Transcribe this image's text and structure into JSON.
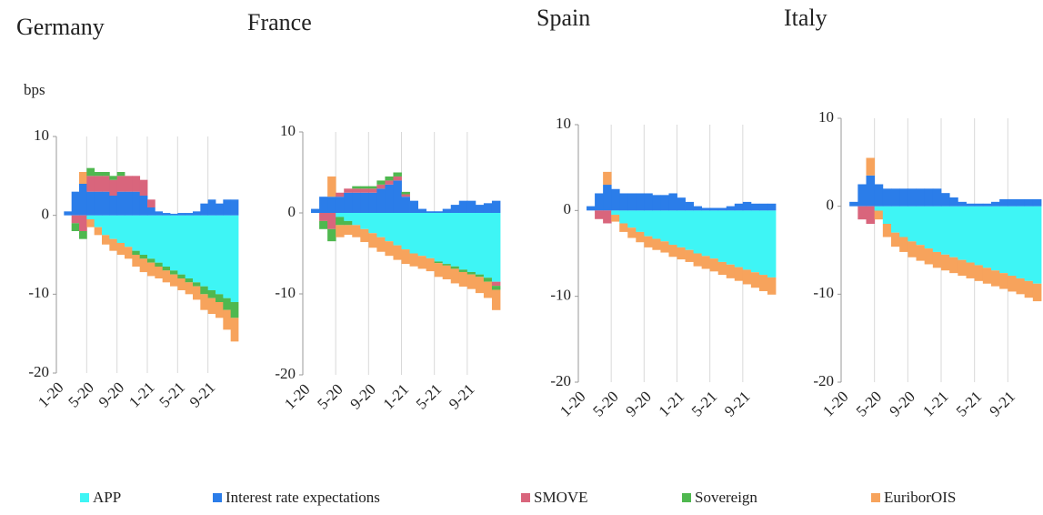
{
  "ylabel": "bps",
  "legend": [
    {
      "name": "APP",
      "color": "#3ef5f5"
    },
    {
      "name": "Interest rate expectations",
      "color": "#2b7de9"
    },
    {
      "name": "SMOVE",
      "color": "#d9657c"
    },
    {
      "name": "Sovereign",
      "color": "#4fb84f"
    },
    {
      "name": "EuriborOIS",
      "color": "#f7a35c"
    }
  ],
  "chart_data": [
    {
      "type": "bar",
      "title": "Germany",
      "ylim": [
        -20,
        10
      ],
      "yticks": [
        10,
        0,
        -10,
        -20
      ],
      "grid": true,
      "categories": [
        "1-20",
        null,
        null,
        null,
        "5-20",
        null,
        null,
        null,
        "9-20",
        null,
        null,
        null,
        "1-21",
        null,
        null,
        null,
        "5-21",
        null,
        null,
        null,
        "9-21",
        null,
        null,
        null
      ],
      "series": [
        {
          "values": [
            0,
            0,
            0,
            0,
            -0.5,
            -1.5,
            -2.5,
            -3,
            -3.5,
            -4,
            -4.5,
            -5,
            -5.5,
            -6,
            -6.5,
            -7,
            -7.5,
            -8,
            -8.5,
            -9,
            -9.5,
            -10,
            -10.5,
            -11
          ]
        },
        {
          "values": [
            0,
            0.5,
            3,
            4,
            3,
            3,
            3,
            2.5,
            3,
            3,
            3,
            2.5,
            1,
            0.5,
            0.3,
            0.2,
            0.3,
            0.3,
            0.5,
            1.5,
            2,
            1.5,
            2,
            2
          ]
        },
        {
          "values": [
            0,
            0,
            -1,
            -2,
            2,
            2,
            2,
            2,
            2,
            2,
            2,
            2,
            1,
            0,
            0,
            0,
            0,
            0,
            0,
            0,
            0,
            0,
            0,
            0
          ]
        },
        {
          "values": [
            0,
            0,
            -1,
            -1,
            1,
            0.5,
            0.5,
            0.5,
            0.5,
            0,
            -0.5,
            -0.5,
            -0.5,
            -0.5,
            -0.5,
            -0.5,
            -0.5,
            -0.5,
            -0.5,
            -1,
            -1,
            -1,
            -1.5,
            -2
          ]
        },
        {
          "values": [
            0,
            0,
            0,
            1.5,
            -1,
            -1,
            -1.2,
            -1.5,
            -1.5,
            -1.5,
            -1.5,
            -1.7,
            -1.7,
            -1.5,
            -1.5,
            -1.5,
            -1.5,
            -1.5,
            -1.7,
            -2,
            -2,
            -2,
            -2.5,
            -3
          ]
        }
      ]
    },
    {
      "type": "bar",
      "title": "France",
      "ylim": [
        -20,
        10
      ],
      "yticks": [
        10,
        0,
        -10,
        -20
      ],
      "grid": true,
      "categories": [
        "1-20",
        null,
        null,
        null,
        "5-20",
        null,
        null,
        null,
        "9-20",
        null,
        null,
        null,
        "1-21",
        null,
        null,
        null,
        "5-21",
        null,
        null,
        null,
        "9-21",
        null,
        null,
        null
      ],
      "series": [
        {
          "values": [
            0,
            0,
            0,
            0,
            -0.5,
            -1,
            -1.5,
            -2,
            -2.5,
            -3,
            -3.5,
            -4,
            -4.5,
            -5,
            -5.3,
            -5.6,
            -6,
            -6.3,
            -6.6,
            -7,
            -7.3,
            -7.6,
            -8,
            -8.5
          ]
        },
        {
          "values": [
            0,
            0.5,
            2,
            2,
            2,
            2.5,
            2.5,
            2.5,
            2.5,
            3,
            3.5,
            4,
            2,
            1.5,
            0.5,
            0.2,
            0.2,
            0.5,
            1,
            1.5,
            1.5,
            1,
            1.2,
            1.5
          ]
        },
        {
          "values": [
            0,
            0,
            -1,
            -2,
            0.5,
            0.5,
            0.5,
            0.5,
            0.5,
            0.5,
            0.5,
            0.5,
            0.3,
            0,
            0,
            0,
            0,
            0,
            0,
            0,
            0,
            0,
            0,
            -0.5
          ]
        },
        {
          "values": [
            0,
            0,
            -1,
            -1.5,
            -1,
            -0.5,
            0.3,
            0.3,
            0.3,
            0.5,
            0.5,
            0.5,
            0.3,
            0,
            0,
            0,
            -0.2,
            -0.2,
            -0.3,
            -0.3,
            -0.3,
            -0.3,
            -0.5,
            -0.5
          ]
        },
        {
          "values": [
            0,
            0,
            0,
            2.5,
            -1.5,
            -1.2,
            -1.5,
            -1.6,
            -1.8,
            -1.8,
            -1.8,
            -1.8,
            -1.8,
            -1.6,
            -1.6,
            -1.6,
            -1.7,
            -1.7,
            -1.8,
            -1.8,
            -1.8,
            -2,
            -2,
            -2.5
          ]
        }
      ]
    },
    {
      "type": "bar",
      "title": "Spain",
      "ylim": [
        -20,
        10
      ],
      "yticks": [
        10,
        0,
        -10,
        -20
      ],
      "grid": true,
      "categories": [
        "1-20",
        null,
        null,
        null,
        "5-20",
        null,
        null,
        null,
        "9-20",
        null,
        null,
        null,
        "1-21",
        null,
        null,
        null,
        "5-21",
        null,
        null,
        null,
        "9-21",
        null,
        null,
        null
      ],
      "series": [
        {
          "values": [
            0,
            0,
            0,
            0,
            -0.5,
            -1.5,
            -2,
            -2.5,
            -3,
            -3.3,
            -3.6,
            -4,
            -4.3,
            -4.6,
            -5,
            -5.3,
            -5.6,
            -6,
            -6.3,
            -6.6,
            -6.9,
            -7.2,
            -7.5,
            -7.8
          ]
        },
        {
          "values": [
            0,
            0.5,
            2,
            3,
            2.5,
            2,
            2,
            2,
            2,
            1.8,
            1.8,
            2,
            1.5,
            1,
            0.5,
            0.3,
            0.3,
            0.3,
            0.5,
            0.8,
            1,
            0.8,
            0.8,
            0.8
          ]
        },
        {
          "values": [
            0,
            0,
            -1,
            -1.5,
            0,
            0,
            0,
            0,
            0,
            0,
            0,
            0,
            0,
            0,
            0,
            0,
            0,
            0,
            0,
            0,
            0,
            0,
            0,
            0
          ]
        },
        {
          "values": [
            0,
            0,
            0,
            0,
            0,
            0,
            0,
            0,
            0,
            0,
            0,
            0,
            0,
            0,
            0,
            0,
            0,
            0,
            0,
            0,
            0,
            0,
            0,
            0
          ]
        },
        {
          "values": [
            0,
            0,
            0,
            1.5,
            -0.8,
            -1,
            -1.2,
            -1.2,
            -1.3,
            -1.3,
            -1.3,
            -1.4,
            -1.4,
            -1.4,
            -1.5,
            -1.5,
            -1.5,
            -1.5,
            -1.6,
            -1.6,
            -1.7,
            -1.8,
            -1.9,
            -2
          ]
        }
      ]
    },
    {
      "type": "bar",
      "title": "Italy",
      "ylim": [
        -20,
        10
      ],
      "yticks": [
        10,
        0,
        -10,
        -20
      ],
      "grid": true,
      "categories": [
        "1-20",
        null,
        null,
        null,
        "5-20",
        null,
        null,
        null,
        "9-20",
        null,
        null,
        null,
        "1-21",
        null,
        null,
        null,
        "5-21",
        null,
        null,
        null,
        "9-21",
        null,
        null,
        null
      ],
      "series": [
        {
          "values": [
            0,
            0,
            0,
            0,
            -0.5,
            -2,
            -3,
            -3.5,
            -4,
            -4.4,
            -4.8,
            -5.2,
            -5.5,
            -5.8,
            -6.1,
            -6.4,
            -6.7,
            -7,
            -7.3,
            -7.6,
            -7.9,
            -8.2,
            -8.5,
            -8.8
          ]
        },
        {
          "values": [
            0,
            0.5,
            2.5,
            3.5,
            2.5,
            2,
            2,
            2,
            2,
            2,
            2,
            2,
            1.5,
            1,
            0.5,
            0.3,
            0.3,
            0.3,
            0.5,
            0.8,
            0.8,
            0.8,
            0.8,
            0.8
          ]
        },
        {
          "values": [
            0,
            0,
            -1.5,
            -2,
            0,
            0,
            0,
            0,
            0,
            0,
            0,
            0,
            0,
            0,
            0,
            0,
            0,
            0,
            0,
            0,
            0,
            0,
            0,
            0
          ]
        },
        {
          "values": [
            0,
            0,
            0,
            0,
            0,
            0,
            0,
            0,
            0,
            0,
            0,
            0,
            0,
            0,
            0,
            0,
            0,
            0,
            0,
            0,
            0,
            0,
            0,
            0
          ]
        },
        {
          "values": [
            0,
            0,
            0,
            2,
            -1,
            -1.5,
            -1.6,
            -1.7,
            -1.8,
            -1.8,
            -1.8,
            -1.8,
            -1.8,
            -1.8,
            -1.8,
            -1.8,
            -1.8,
            -1.8,
            -1.8,
            -1.8,
            -1.8,
            -1.8,
            -1.9,
            -2
          ]
        }
      ]
    }
  ]
}
